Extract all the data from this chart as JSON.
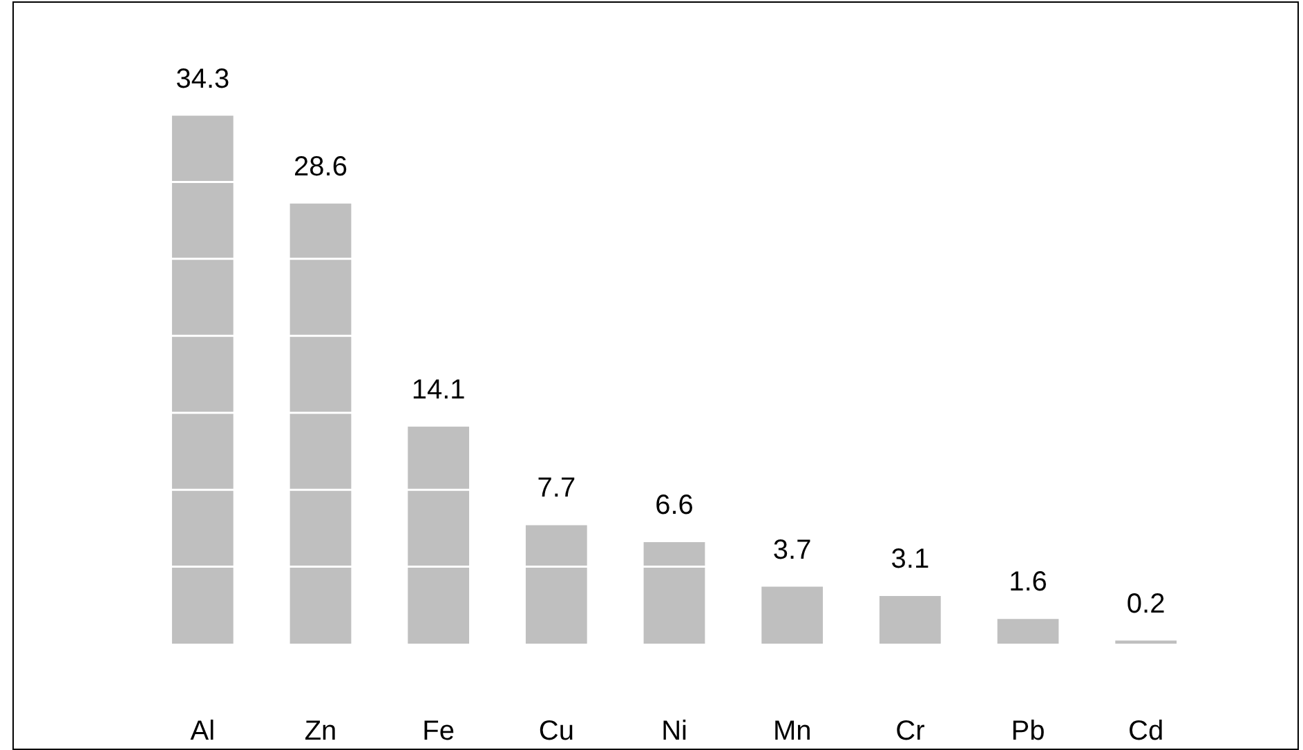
{
  "chart_data": {
    "type": "bar",
    "categories": [
      "Al",
      "Zn",
      "Fe",
      "Cu",
      "Ni",
      "Mn",
      "Cr",
      "Pb",
      "Cd"
    ],
    "values": [
      34.3,
      28.6,
      14.1,
      7.7,
      6.6,
      3.7,
      3.1,
      1.6,
      0.2
    ],
    "color": "#bfbfbf",
    "yticks": [
      {
        "value": 5,
        "label": null
      },
      {
        "value": 10,
        "label": null
      },
      {
        "value": 15,
        "label": null
      },
      {
        "value": 20,
        "label": null
      },
      {
        "value": 25,
        "label": null
      },
      {
        "value": 30,
        "label": null
      }
    ],
    "tick_labels": "x",
    "grid": "y",
    "data_labels": true,
    "legend": false
  }
}
